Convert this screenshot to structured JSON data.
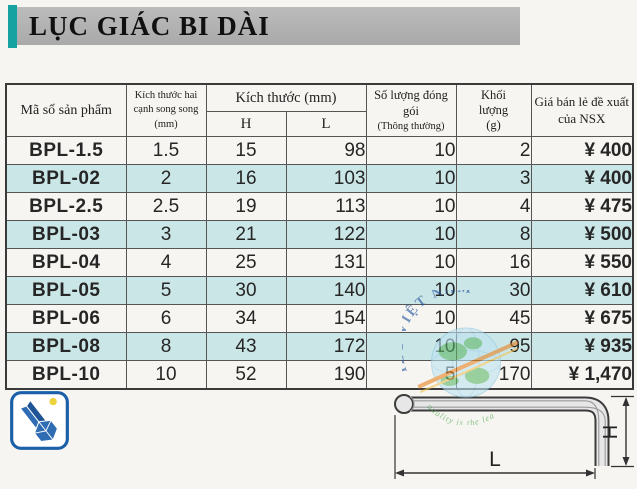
{
  "title": "LỤC GIÁC BI DÀI",
  "table": {
    "headers": {
      "product_code": "Mã số sản phẩm",
      "across_flats": "Kích thước hai cạnh song song (mm)",
      "dimensions_group": "Kích thước (mm)",
      "dim_h": "H",
      "dim_l": "L",
      "pack_qty": "Số lượng đóng gói",
      "pack_qty_note": "(Thông thường)",
      "weight": "Khối lượng",
      "weight_unit": "(g)",
      "price": "Giá bán lẻ đề xuất của NSX"
    },
    "rows": [
      {
        "code": "BPL-1.5",
        "size": "1.5",
        "h": "15",
        "l": "98",
        "qty": "10",
        "weight": "2",
        "price": "¥ 400"
      },
      {
        "code": "BPL-02",
        "size": "2",
        "h": "16",
        "l": "103",
        "qty": "10",
        "weight": "3",
        "price": "¥ 400"
      },
      {
        "code": "BPL-2.5",
        "size": "2.5",
        "h": "19",
        "l": "113",
        "qty": "10",
        "weight": "4",
        "price": "¥ 475"
      },
      {
        "code": "BPL-03",
        "size": "3",
        "h": "21",
        "l": "122",
        "qty": "10",
        "weight": "8",
        "price": "¥ 500"
      },
      {
        "code": "BPL-04",
        "size": "4",
        "h": "25",
        "l": "131",
        "qty": "10",
        "weight": "16",
        "price": "¥ 550"
      },
      {
        "code": "BPL-05",
        "size": "5",
        "h": "30",
        "l": "140",
        "qty": "10",
        "weight": "30",
        "price": "¥ 610"
      },
      {
        "code": "BPL-06",
        "size": "6",
        "h": "34",
        "l": "154",
        "qty": "10",
        "weight": "45",
        "price": "¥ 675"
      },
      {
        "code": "BPL-08",
        "size": "8",
        "h": "43",
        "l": "172",
        "qty": "10",
        "weight": "95",
        "price": "¥ 935"
      },
      {
        "code": "BPL-10",
        "size": "10",
        "h": "52",
        "l": "190",
        "qty": "5",
        "weight": "170",
        "price": "¥ 1,470"
      }
    ]
  },
  "diagram": {
    "label_l": "L",
    "label_h": "H"
  },
  "watermark": {
    "arc_top": "IEC VIỆT NAM",
    "arc_bottom": "quality is the lea"
  },
  "colors": {
    "accent_teal": "#17a2a2",
    "title_bg": "#b2b2b2",
    "row_alt": "#cbe6e7",
    "border_dark": "#3a3a3a",
    "icon_blue": "#2a63ad"
  }
}
